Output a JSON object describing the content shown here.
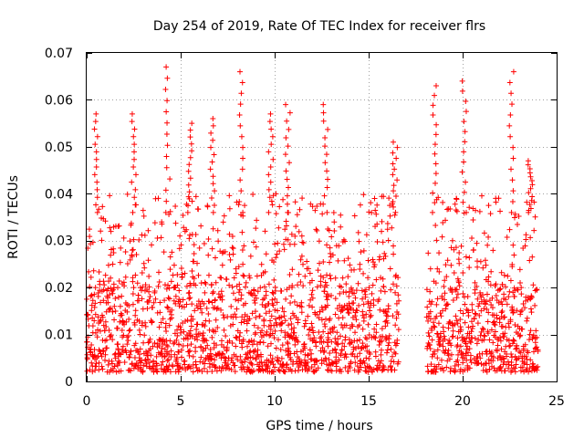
{
  "chart_data": {
    "type": "scatter",
    "title": "Day 254 of 2019, Rate Of TEC Index for receiver flrs",
    "xlabel": "GPS time / hours",
    "ylabel": "ROTI / TECUs",
    "xlim": [
      0,
      25
    ],
    "ylim": [
      0,
      0.07
    ],
    "xticks": [
      "0",
      "5",
      "10",
      "15",
      "20",
      "25"
    ],
    "yticks": [
      "0",
      "0.01",
      "0.02",
      "0.03",
      "0.04",
      "0.05",
      "0.06",
      "0.07"
    ],
    "grid": true,
    "marker": "+",
    "color": "#ff0000",
    "series": [
      {
        "name": "ROTI",
        "segments": [
          {
            "x_start": 0.0,
            "x_end": 16.6
          },
          {
            "x_start": 18.1,
            "x_end": 24.0
          }
        ],
        "baseline_range": [
          0.002,
          0.02
        ],
        "typical_max": 0.04,
        "peaks": [
          {
            "x": 0.5,
            "y": 0.057
          },
          {
            "x": 2.5,
            "y": 0.057
          },
          {
            "x": 4.3,
            "y": 0.067
          },
          {
            "x": 5.5,
            "y": 0.055
          },
          {
            "x": 6.7,
            "y": 0.056
          },
          {
            "x": 8.2,
            "y": 0.066
          },
          {
            "x": 9.8,
            "y": 0.057
          },
          {
            "x": 10.7,
            "y": 0.059
          },
          {
            "x": 12.7,
            "y": 0.059
          },
          {
            "x": 16.4,
            "y": 0.051
          },
          {
            "x": 18.5,
            "y": 0.063
          },
          {
            "x": 20.1,
            "y": 0.064
          },
          {
            "x": 22.6,
            "y": 0.066
          },
          {
            "x": 23.6,
            "y": 0.047
          }
        ]
      }
    ]
  }
}
